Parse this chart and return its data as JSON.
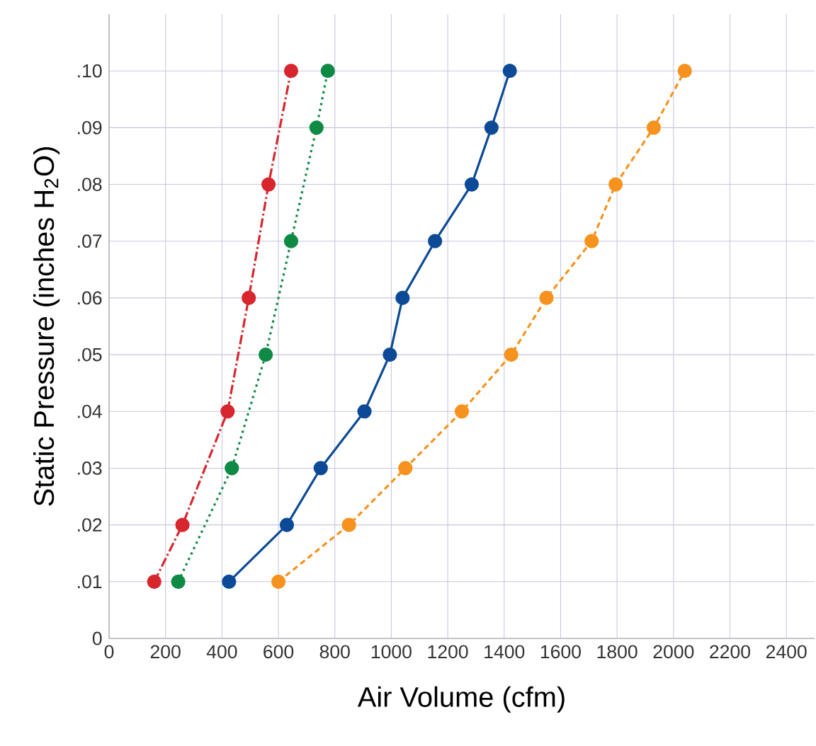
{
  "chart_data": {
    "type": "line",
    "xlabel": "Air Volume (cfm)",
    "ylabel": "Static Pressure (inches H$_{2}$O)",
    "xlim": [
      0,
      2500
    ],
    "ylim": [
      0,
      0.11
    ],
    "xticks": [
      0,
      200,
      400,
      600,
      800,
      1000,
      1200,
      1400,
      1600,
      1800,
      2000,
      2200,
      2400
    ],
    "yticks": [
      0,
      {
        "value": 0.01,
        "label": ".01"
      },
      {
        "value": 0.02,
        "label": ".02"
      },
      {
        "value": 0.03,
        "label": ".03"
      },
      {
        "value": 0.04,
        "label": ".04"
      },
      {
        "value": 0.05,
        "label": ".05"
      },
      {
        "value": 0.06,
        "label": ".06"
      },
      {
        "value": 0.07,
        "label": ".07"
      },
      {
        "value": 0.08,
        "label": ".08"
      },
      {
        "value": 0.09,
        "label": ".09"
      },
      {
        "value": 0.1,
        "label": ".10"
      }
    ],
    "grid": true,
    "marker": "circle",
    "series": [
      {
        "color": "#d7262e",
        "line_style": "dashdot",
        "x": [
          160,
          260,
          420,
          495,
          565,
          645
        ],
        "values": [
          0.01,
          0.02,
          0.04,
          0.06,
          0.08,
          0.1
        ]
      },
      {
        "color": "#0f8a45",
        "line_style": "dotted",
        "x": [
          245,
          435,
          555,
          645,
          735,
          775
        ],
        "values": [
          0.01,
          0.03,
          0.05,
          0.07,
          0.09,
          0.1
        ]
      },
      {
        "color": "#0c4a97",
        "line_style": "solid",
        "x": [
          425,
          630,
          750,
          905,
          995,
          1040,
          1155,
          1285,
          1355,
          1420
        ],
        "values": [
          0.01,
          0.02,
          0.03,
          0.04,
          0.05,
          0.06,
          0.07,
          0.08,
          0.09,
          0.1
        ]
      },
      {
        "color": "#f6921e",
        "line_style": "dashed",
        "x": [
          600,
          850,
          1050,
          1250,
          1425,
          1550,
          1710,
          1795,
          1930,
          2040
        ],
        "values": [
          0.01,
          0.02,
          0.03,
          0.04,
          0.05,
          0.06,
          0.07,
          0.08,
          0.09,
          0.1
        ]
      }
    ]
  }
}
